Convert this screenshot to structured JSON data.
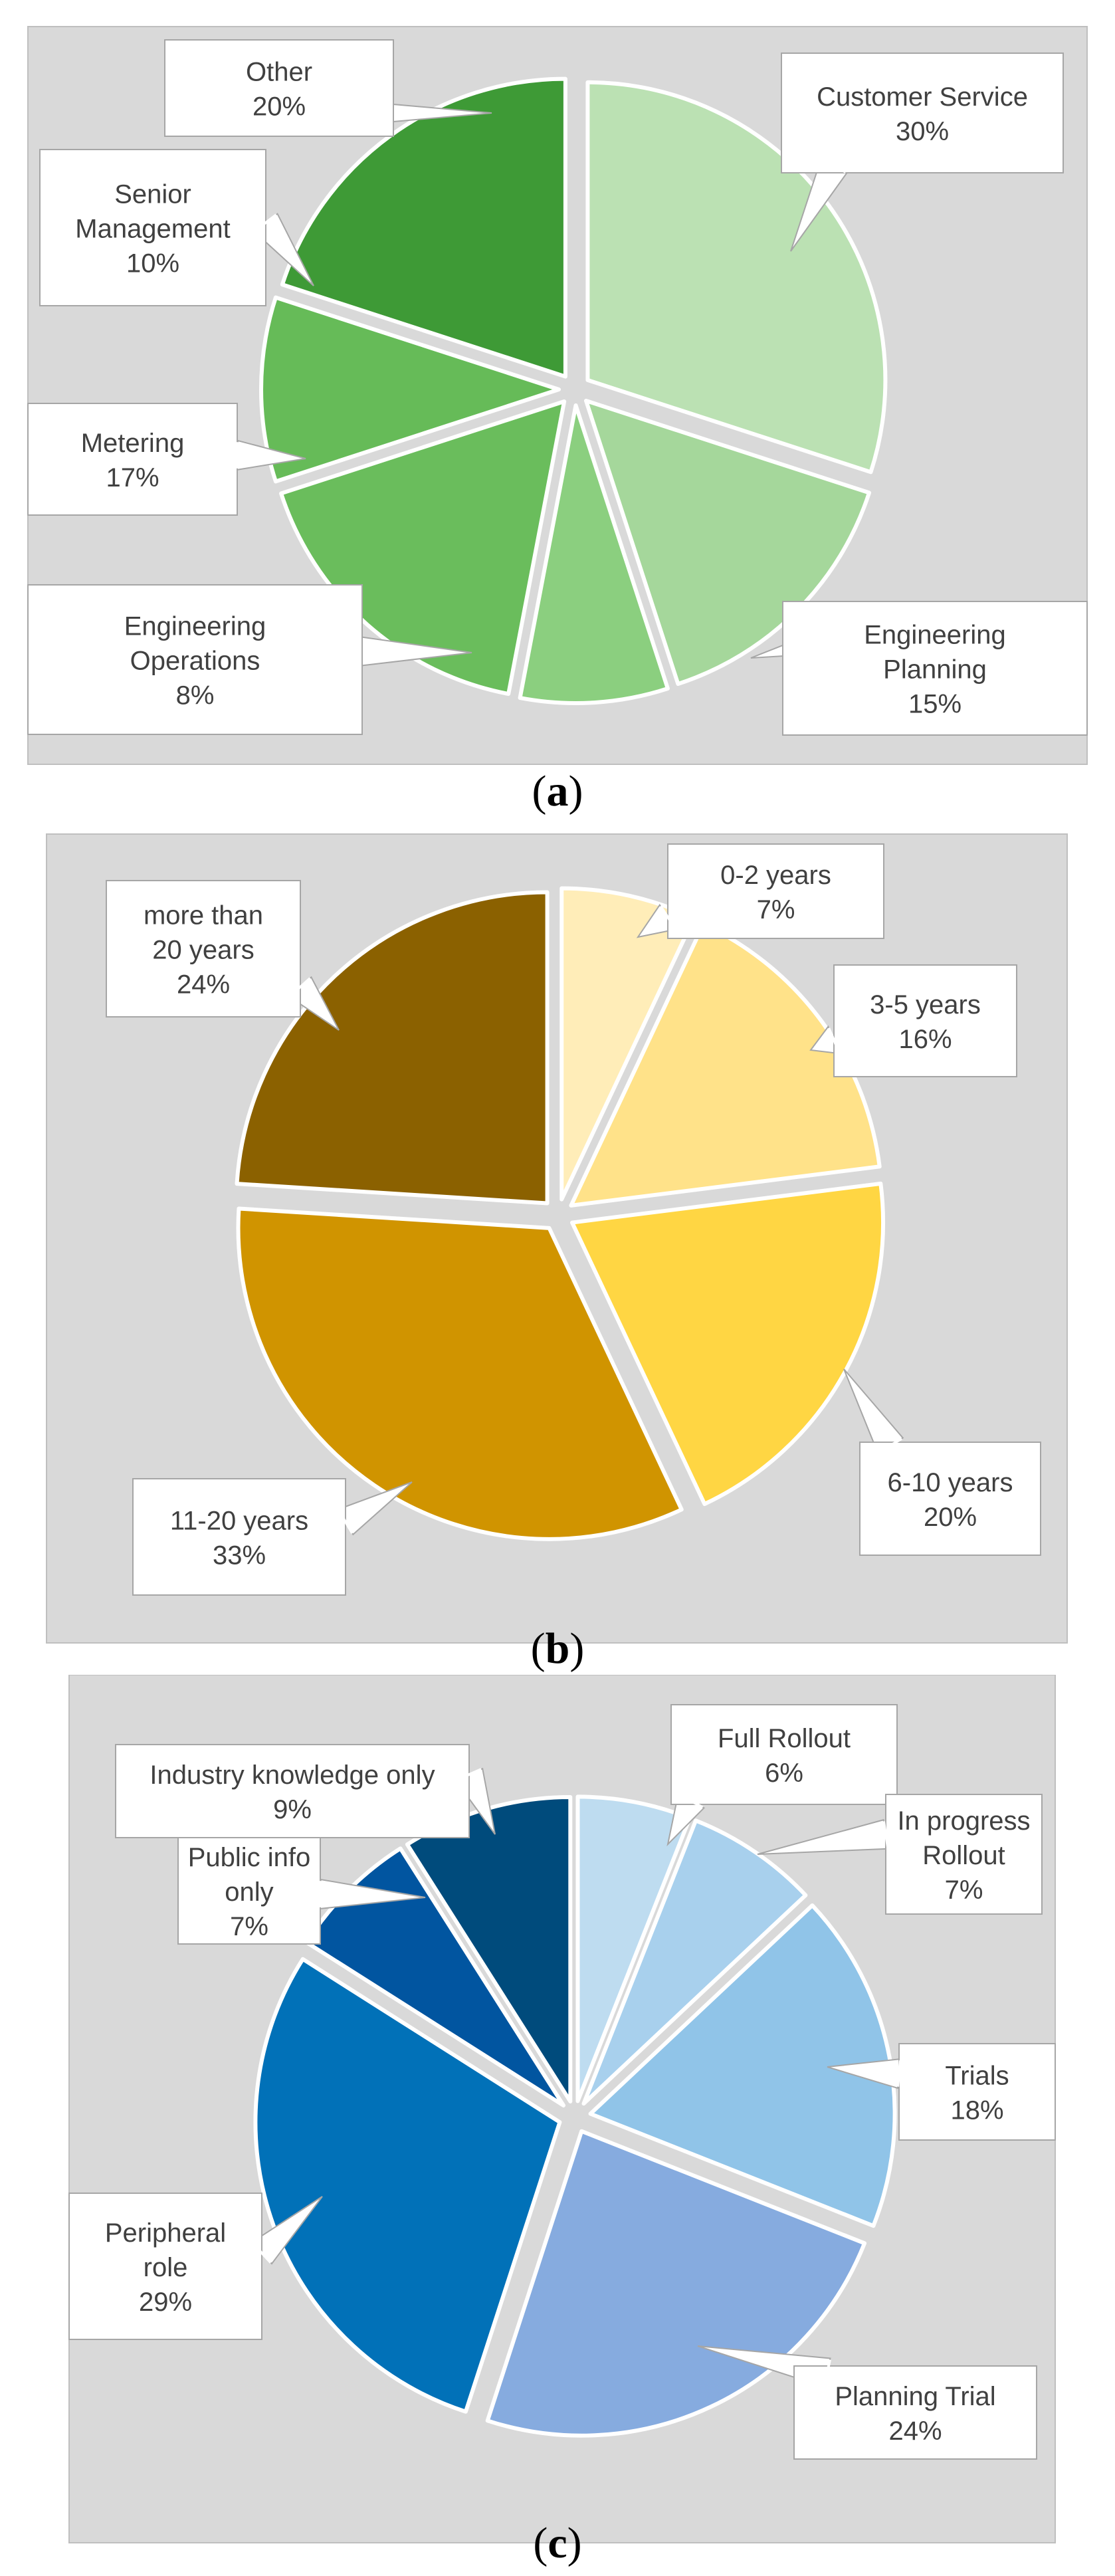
{
  "chart_data": [
    {
      "type": "pie",
      "caption_open": "(",
      "caption_letter": "a",
      "caption_close": ")",
      "slices": [
        {
          "name": "Customer Service",
          "value": 30,
          "label_lines": [
            "Customer Service",
            "30%"
          ],
          "color": "#bbe1b3"
        },
        {
          "name": "Engineering Planning",
          "value": 15,
          "label_lines": [
            "Engineering",
            "Planning",
            "15%"
          ],
          "color": "#a5d79b"
        },
        {
          "name": "Engineering Operations",
          "value": 8,
          "label_lines": [
            "Engineering",
            "Operations",
            "8%"
          ],
          "color": "#8bcf7f"
        },
        {
          "name": "Metering",
          "value": 17,
          "label_lines": [
            "Metering",
            "17%"
          ],
          "color": "#6abd5c"
        },
        {
          "name": "Senior Management",
          "value": 10,
          "label_lines": [
            "Senior",
            "Management",
            "10%"
          ],
          "color": "#66bb58"
        },
        {
          "name": "Other",
          "value": 20,
          "label_lines": [
            "Other",
            "20%"
          ],
          "color": "#3e9a36"
        }
      ]
    },
    {
      "type": "pie",
      "caption_open": "(",
      "caption_letter": "b",
      "caption_close": ")",
      "slices": [
        {
          "name": "0-2 years",
          "value": 7,
          "label_lines": [
            "0-2 years",
            "7%"
          ],
          "color": "#ffedb8"
        },
        {
          "name": "3-5 years",
          "value": 16,
          "label_lines": [
            "3-5 years",
            "16%"
          ],
          "color": "#ffe289"
        },
        {
          "name": "6-10 years",
          "value": 20,
          "label_lines": [
            "6-10 years",
            "20%"
          ],
          "color": "#ffd643"
        },
        {
          "name": "11-20 years",
          "value": 33,
          "label_lines": [
            "11-20 years",
            "33%"
          ],
          "color": "#d09400"
        },
        {
          "name": "more than 20 years",
          "value": 24,
          "label_lines": [
            "more than",
            "20 years",
            "24%"
          ],
          "color": "#8b6100"
        }
      ]
    },
    {
      "type": "pie",
      "caption_open": "(",
      "caption_letter": "c",
      "caption_close": ")",
      "slices": [
        {
          "name": "Full Rollout",
          "value": 6,
          "label_lines": [
            "Full Rollout",
            "6%"
          ],
          "color": "#bedcf0"
        },
        {
          "name": "In progress Rollout",
          "value": 7,
          "label_lines": [
            "In progress",
            "Rollout",
            "7%"
          ],
          "color": "#a8d0ed"
        },
        {
          "name": "Trials",
          "value": 18,
          "label_lines": [
            "Trials",
            "18%"
          ],
          "color": "#90c4e8"
        },
        {
          "name": "Planning Trial",
          "value": 24,
          "label_lines": [
            "Planning Trial",
            "24%"
          ],
          "color": "#86abdf"
        },
        {
          "name": "Peripheral role",
          "value": 29,
          "label_lines": [
            "Peripheral",
            "role",
            "29%"
          ],
          "color": "#0171b8"
        },
        {
          "name": "Public info only",
          "value": 7,
          "label_lines": [
            "Public info",
            "only",
            "7%"
          ],
          "color": "#0155a0"
        },
        {
          "name": "Industry knowledge only",
          "value": 9,
          "label_lines": [
            "Industry knowledge only",
            "9%"
          ],
          "color": "#004b7c"
        }
      ]
    }
  ]
}
